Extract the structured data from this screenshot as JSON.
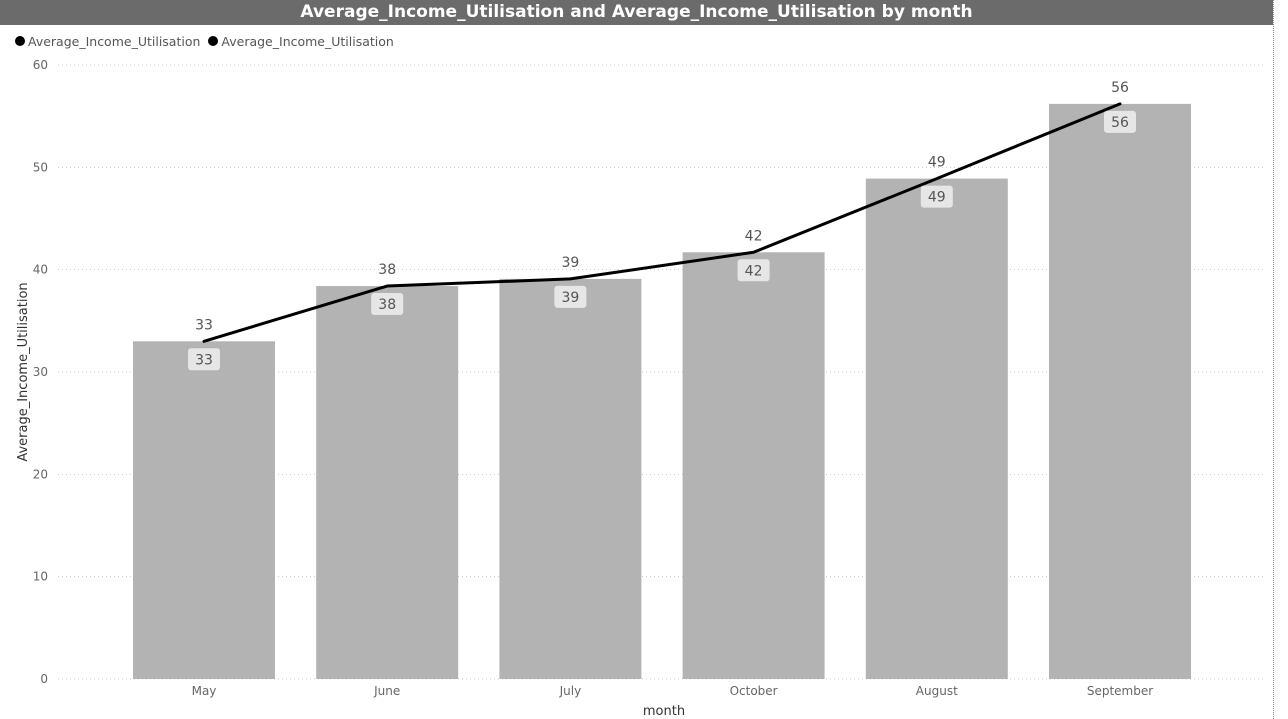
{
  "header": {
    "title": "Average_Income_Utilisation and Average_Income_Utilisation by month"
  },
  "legend": {
    "items": [
      {
        "label": "Average_Income_Utilisation",
        "color": "#000000"
      },
      {
        "label": "Average_Income_Utilisation",
        "color": "#000000"
      }
    ]
  },
  "chart_data": {
    "type": "bar",
    "title": "Average_Income_Utilisation and Average_Income_Utilisation by month",
    "xlabel": "month",
    "ylabel": "Average_Income_Utilisation",
    "categories": [
      "May",
      "June",
      "July",
      "October",
      "August",
      "September"
    ],
    "ylim": [
      0,
      60
    ],
    "yticks": [
      0,
      10,
      20,
      30,
      40,
      50,
      60
    ],
    "grid": true,
    "legend_position": "top-left",
    "series": [
      {
        "name": "Average_Income_Utilisation",
        "kind": "bar",
        "color": "#b3b3b3",
        "values": [
          33,
          38.4,
          39.1,
          41.7,
          48.9,
          56.2
        ],
        "labels": [
          "33",
          "38",
          "39",
          "42",
          "49",
          "56"
        ]
      },
      {
        "name": "Average_Income_Utilisation",
        "kind": "line",
        "color": "#000000",
        "values": [
          33,
          38.4,
          39.1,
          41.7,
          48.9,
          56.2
        ],
        "labels": [
          "33",
          "38",
          "39",
          "42",
          "49",
          "56"
        ]
      }
    ]
  }
}
